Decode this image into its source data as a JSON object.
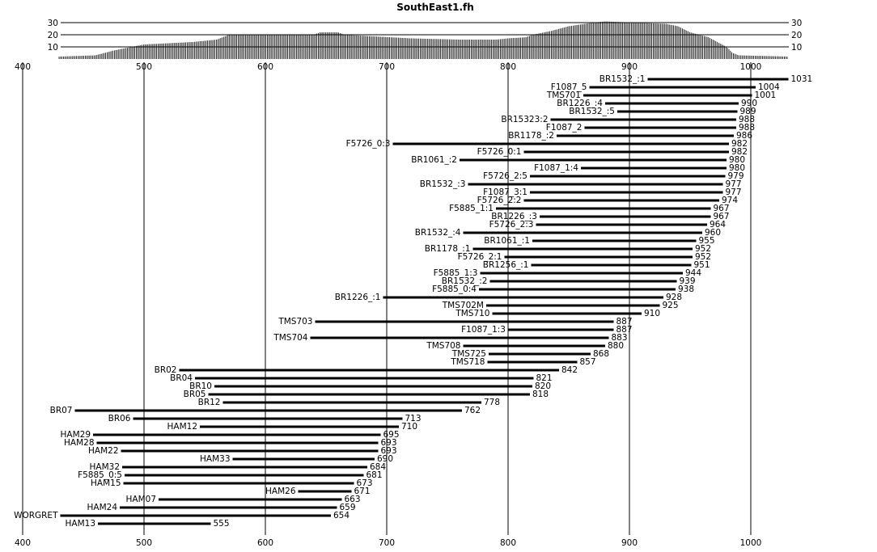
{
  "chart_data": {
    "type": "bar",
    "title": "SouthEast1.fh",
    "x_axis": {
      "min": 400,
      "max": 1000,
      "ticks": [
        400,
        500,
        600,
        700,
        800,
        900,
        1000
      ],
      "gridlines": true
    },
    "histogram": {
      "y_ticks": [
        10,
        20,
        30
      ],
      "x_start": 430,
      "x_end": 1031,
      "profile_points": [
        {
          "x": 430,
          "y": 2
        },
        {
          "x": 460,
          "y": 3
        },
        {
          "x": 475,
          "y": 7
        },
        {
          "x": 490,
          "y": 10
        },
        {
          "x": 500,
          "y": 12
        },
        {
          "x": 540,
          "y": 14
        },
        {
          "x": 560,
          "y": 16
        },
        {
          "x": 570,
          "y": 20
        },
        {
          "x": 640,
          "y": 20
        },
        {
          "x": 645,
          "y": 22
        },
        {
          "x": 660,
          "y": 22
        },
        {
          "x": 665,
          "y": 20
        },
        {
          "x": 720,
          "y": 17
        },
        {
          "x": 760,
          "y": 16
        },
        {
          "x": 790,
          "y": 16
        },
        {
          "x": 800,
          "y": 17
        },
        {
          "x": 815,
          "y": 18
        },
        {
          "x": 820,
          "y": 20
        },
        {
          "x": 835,
          "y": 23
        },
        {
          "x": 850,
          "y": 27
        },
        {
          "x": 870,
          "y": 30
        },
        {
          "x": 880,
          "y": 31
        },
        {
          "x": 930,
          "y": 29
        },
        {
          "x": 940,
          "y": 27
        },
        {
          "x": 950,
          "y": 22
        },
        {
          "x": 965,
          "y": 18
        },
        {
          "x": 980,
          "y": 10
        },
        {
          "x": 985,
          "y": 5
        },
        {
          "x": 990,
          "y": 3
        },
        {
          "x": 1031,
          "y": 2
        }
      ]
    },
    "segments": [
      {
        "label": "BR1532_:1",
        "start": 915,
        "end": 1031
      },
      {
        "label": "F1087_5",
        "start": 867,
        "end": 1004
      },
      {
        "label": "TMS701",
        "start": 862,
        "end": 1001
      },
      {
        "label": "BR1226_:4",
        "start": 880,
        "end": 990
      },
      {
        "label": "BR1532_:5",
        "start": 890,
        "end": 989
      },
      {
        "label": "BR15323:2",
        "start": 835,
        "end": 988
      },
      {
        "label": "F1087_2",
        "start": 863,
        "end": 988
      },
      {
        "label": "BR1178_:2",
        "start": 840,
        "end": 986
      },
      {
        "label": "F5726_0:3",
        "start": 705,
        "end": 982
      },
      {
        "label": "F5726_0:1",
        "start": 813,
        "end": 982
      },
      {
        "label": "BR1061_:2",
        "start": 760,
        "end": 980
      },
      {
        "label": "F1087_1:4",
        "start": 860,
        "end": 980
      },
      {
        "label": "F5726_2:5",
        "start": 818,
        "end": 979
      },
      {
        "label": "BR1532_:3",
        "start": 767,
        "end": 977
      },
      {
        "label": "F1087_3:1",
        "start": 818,
        "end": 977
      },
      {
        "label": "F5726_2:2",
        "start": 813,
        "end": 974
      },
      {
        "label": "F5885_1:1",
        "start": 790,
        "end": 967
      },
      {
        "label": "BR1226_:3",
        "start": 826,
        "end": 967
      },
      {
        "label": "F5726_2:3",
        "start": 823,
        "end": 964
      },
      {
        "label": "BR1532_:4",
        "start": 763,
        "end": 960
      },
      {
        "label": "BR1061_:1",
        "start": 820,
        "end": 955
      },
      {
        "label": "BR1178_:1",
        "start": 771,
        "end": 952
      },
      {
        "label": "F5726_2:1",
        "start": 797,
        "end": 952
      },
      {
        "label": "BR1256_:1",
        "start": 819,
        "end": 951
      },
      {
        "label": "F5885_1:3",
        "start": 777,
        "end": 944
      },
      {
        "label": "BR1532_:2",
        "start": 785,
        "end": 939
      },
      {
        "label": "F5885_0:4",
        "start": 776,
        "end": 938
      },
      {
        "label": "BR1226_:1",
        "start": 697,
        "end": 928
      },
      {
        "label": "TMS702M",
        "start": 782,
        "end": 925
      },
      {
        "label": "TMS710",
        "start": 787,
        "end": 910
      },
      {
        "label": "TMS703",
        "start": 641,
        "end": 887
      },
      {
        "label": "F1087_1:3",
        "start": 800,
        "end": 887
      },
      {
        "label": "TMS704",
        "start": 637,
        "end": 883
      },
      {
        "label": "TMS708",
        "start": 763,
        "end": 880
      },
      {
        "label": "TMS725",
        "start": 784,
        "end": 868
      },
      {
        "label": "TMS718",
        "start": 783,
        "end": 857
      },
      {
        "label": "BR02",
        "start": 529,
        "end": 842
      },
      {
        "label": "BR04",
        "start": 542,
        "end": 821
      },
      {
        "label": "BR10",
        "start": 558,
        "end": 820
      },
      {
        "label": "BR05",
        "start": 553,
        "end": 818
      },
      {
        "label": "BR12",
        "start": 565,
        "end": 778
      },
      {
        "label": "BR07",
        "start": 443,
        "end": 762
      },
      {
        "label": "BR06",
        "start": 491,
        "end": 713
      },
      {
        "label": "HAM12",
        "start": 546,
        "end": 710
      },
      {
        "label": "HAM29",
        "start": 458,
        "end": 695
      },
      {
        "label": "HAM28",
        "start": 461,
        "end": 693
      },
      {
        "label": "HAM22",
        "start": 481,
        "end": 693
      },
      {
        "label": "HAM33",
        "start": 573,
        "end": 690
      },
      {
        "label": "HAM32",
        "start": 482,
        "end": 684
      },
      {
        "label": "F5885_0:5",
        "start": 484,
        "end": 681
      },
      {
        "label": "HAM15",
        "start": 483,
        "end": 673
      },
      {
        "label": "HAM26",
        "start": 627,
        "end": 671
      },
      {
        "label": "HAM07",
        "start": 512,
        "end": 663
      },
      {
        "label": "HAM24",
        "start": 480,
        "end": 659
      },
      {
        "label": "WORGRET",
        "start": 431,
        "end": 654
      },
      {
        "label": "HAM13",
        "start": 462,
        "end": 555
      }
    ]
  }
}
